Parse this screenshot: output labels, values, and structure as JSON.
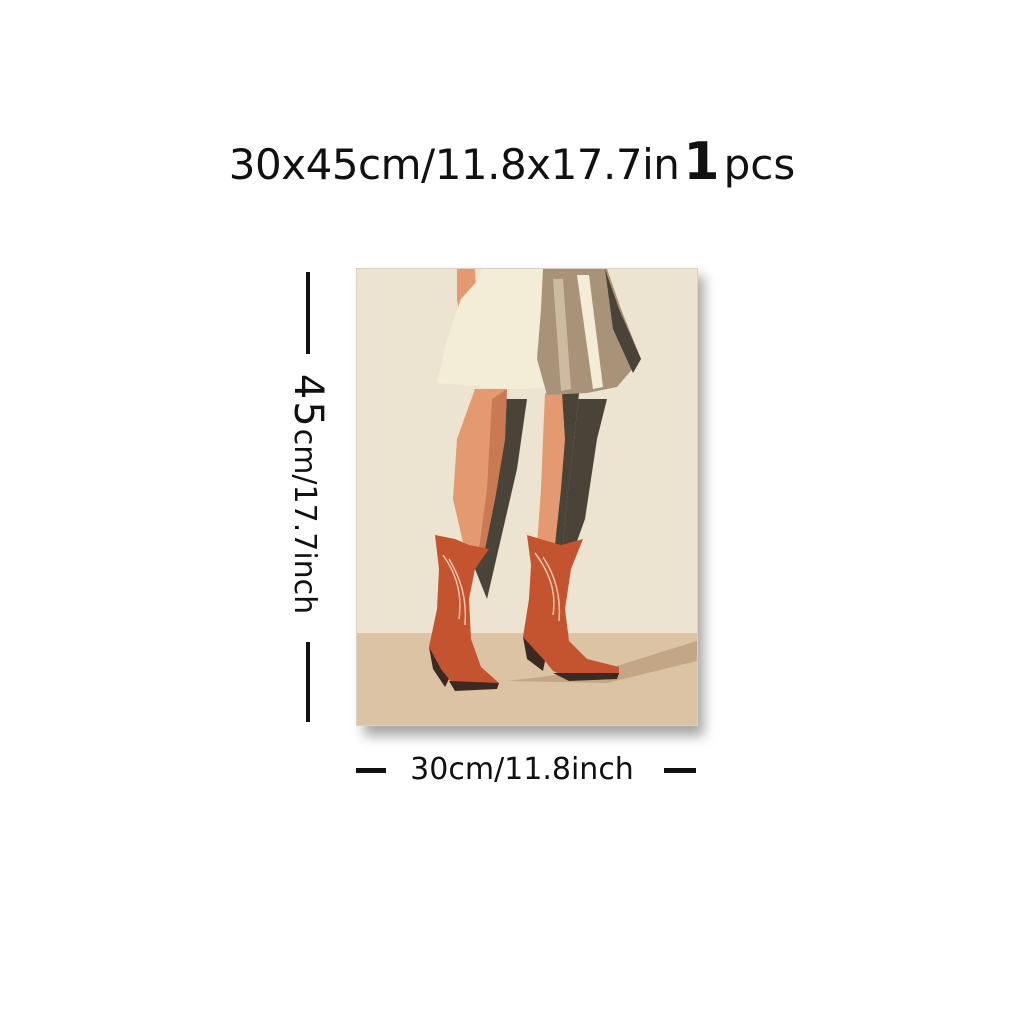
{
  "headline": {
    "size_text": "30x45cm/11.8x17.7in",
    "quantity_number": "1",
    "quantity_unit": "pcs"
  },
  "dimensions": {
    "height_number": "45",
    "height_unit_text": "cm/17.7inch",
    "width_text": "30cm/11.8inch"
  },
  "artwork": {
    "subject": "legs-in-red-cowboy-boots-icon",
    "colors": {
      "wall": "#ece3d0",
      "floor": "#dcc3a4",
      "skin": "#e39a70",
      "boot": "#c4532f",
      "dress_light": "#f3ecd6",
      "dress_dark": "#a89379",
      "shadow": "#4a4338"
    }
  }
}
